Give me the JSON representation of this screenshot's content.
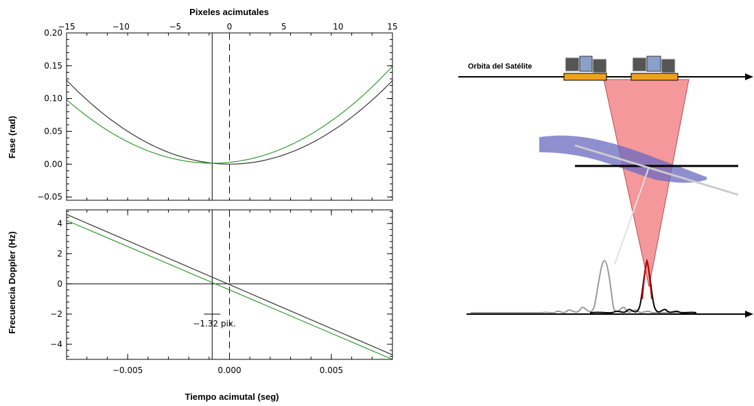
{
  "chart_data": [
    {
      "type": "line",
      "panel": "top",
      "title": "Pixeles  acimutales",
      "ylabel": "Fase  (rad)",
      "top_axis": {
        "label": "Pixeles  acimutales",
        "ticks": [
          -15,
          -10,
          -5,
          0,
          5,
          10,
          15
        ],
        "tick_labels": [
          "−15",
          "−10",
          "−5",
          "0",
          "5",
          "10",
          "15"
        ],
        "range": [
          -15,
          15
        ]
      },
      "xlim": [
        -0.008,
        0.008
      ],
      "ylim": [
        -0.055,
        0.2
      ],
      "y_ticks": [
        -0.05,
        0.0,
        0.05,
        0.1,
        0.15,
        0.2
      ],
      "y_tick_labels": [
        "−0.05",
        "0.00",
        "0.05",
        "0.10",
        "0.15",
        "0.20"
      ],
      "vertical_lines": [
        {
          "x": -0.00085,
          "style": "solid",
          "color": "#000000"
        },
        {
          "x": 0.0,
          "style": "dashed",
          "color": "#000000"
        }
      ],
      "series": [
        {
          "color": "#333333",
          "x": [
            -0.008,
            -0.006,
            -0.004,
            -0.002,
            -0.001,
            0.0,
            0.002,
            0.004,
            0.006,
            0.008
          ],
          "values": [
            0.128,
            0.072,
            0.032,
            0.008,
            0.002,
            0.0,
            0.008,
            0.032,
            0.072,
            0.127
          ]
        },
        {
          "color": "#2e9a2e",
          "x": [
            -0.008,
            -0.006,
            -0.004,
            -0.002,
            -0.001,
            0.0,
            0.002,
            0.004,
            0.006,
            0.008
          ],
          "values": [
            0.101,
            0.051,
            0.018,
            0.002,
            0.0,
            0.002,
            0.018,
            0.051,
            0.092,
            0.145
          ]
        }
      ]
    },
    {
      "type": "line",
      "panel": "bottom",
      "ylabel": "Frecuencia Doppler (Hz)",
      "xlabel": "Tiempo acimutal  (seg)",
      "xlim": [
        -0.008,
        0.008
      ],
      "ylim": [
        -5.0,
        4.9
      ],
      "x_ticks": [
        -0.005,
        0.0,
        0.005
      ],
      "x_tick_labels": [
        "−0.005",
        "0.000",
        "0.005"
      ],
      "y_ticks": [
        -4,
        -2,
        0,
        2,
        4
      ],
      "y_tick_labels": [
        "−4",
        "−2",
        "0",
        "2",
        "4"
      ],
      "hlines": [
        {
          "y": 0,
          "color": "#000000"
        }
      ],
      "vertical_lines": [
        {
          "x": -0.00085,
          "style": "solid",
          "color": "#000000"
        },
        {
          "x": 0.0,
          "style": "dashed",
          "color": "#000000"
        }
      ],
      "annotation": {
        "text": "−1.32  pix.",
        "x": -0.00085,
        "y": -2.0
      },
      "series": [
        {
          "color": "#333333",
          "x": [
            -0.008,
            0.008
          ],
          "values": [
            4.6,
            -4.7
          ]
        },
        {
          "color": "#2e9a2e",
          "x": [
            -0.008,
            0.008
          ],
          "values": [
            4.2,
            -5.0
          ]
        }
      ]
    }
  ],
  "diagram": {
    "orbit_label": "Orbita del Satélite",
    "colors": {
      "beam": "#f2868a",
      "beam_edge": "#b05050",
      "swath": "#7a7ac8",
      "platform": "#f0a020",
      "axis": "#000000"
    }
  }
}
